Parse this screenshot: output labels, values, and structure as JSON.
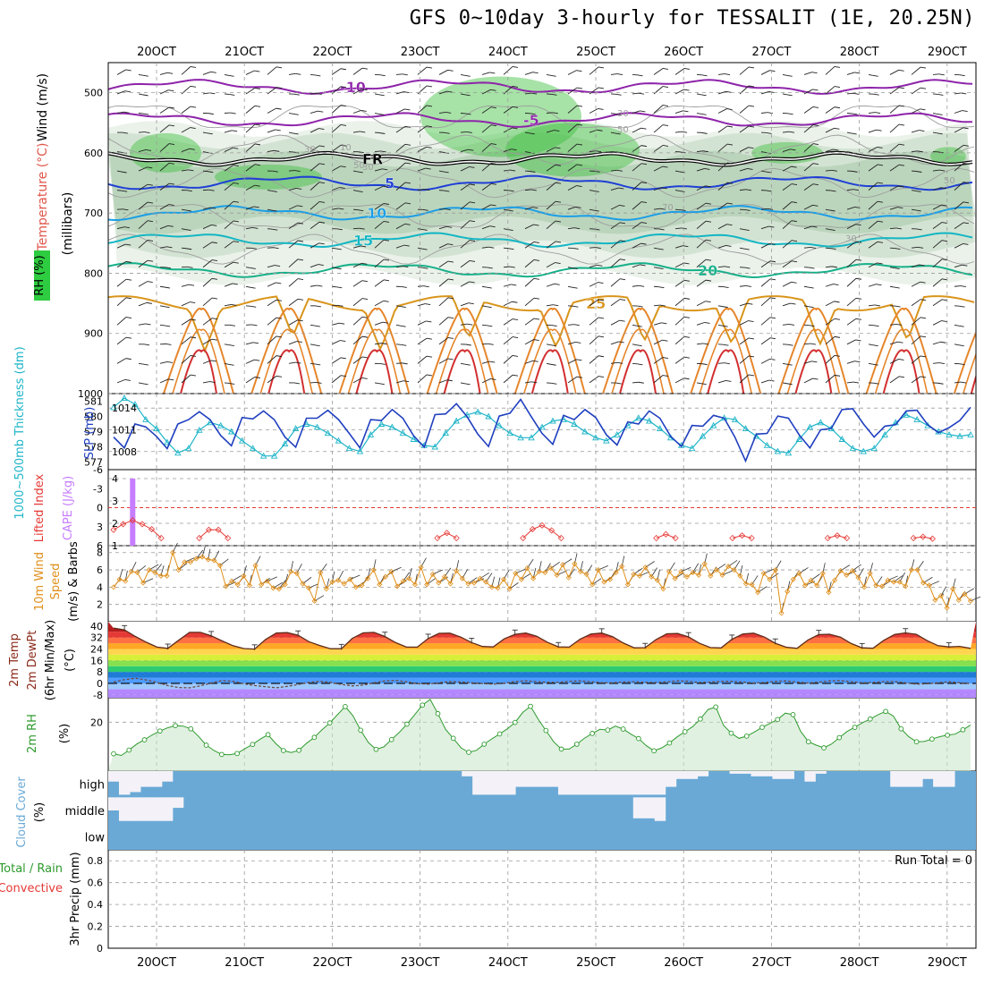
{
  "title": "GFS 0~10day 3-hourly for TESSALIT (1E, 20.25N)",
  "colors": {
    "temp_contour": "#7b1fa2",
    "freezing": "#000000",
    "rh_fill": "#2e7d32",
    "slp": "#1f3fbf",
    "thickness": "#1fb5c8",
    "cape": "#c77dff",
    "lifted_index": "#e53935",
    "wind": "#e08f1a",
    "rh2m": "#2e9a2e",
    "cloud": "#6aa9d6",
    "precip_total": "#2e9a2e",
    "precip_conv": "#e53935"
  },
  "chart_data": [
    {
      "panel": "upper-air",
      "type": "heatmap",
      "xlabels": [
        "20OCT",
        "21OCT",
        "22OCT",
        "23OCT",
        "24OCT",
        "25OCT",
        "26OCT",
        "27OCT",
        "28OCT",
        "29OCT"
      ],
      "ylabel_parts": [
        "RH (%)",
        "Temperature (°C)",
        "Wind (m/s)"
      ],
      "pressure_label": "(millibars)",
      "pressure_ticks": [
        500,
        600,
        700,
        800,
        900,
        1000
      ],
      "ylim": [
        450,
        1000
      ],
      "contours": [
        {
          "label": "-10",
          "level_mb": 490,
          "color": "#8e24aa"
        },
        {
          "label": "-5",
          "level_mb": 545,
          "color": "#8e24aa"
        },
        {
          "label": "FR",
          "level_mb": 610,
          "color": "#000000"
        },
        {
          "label": "5",
          "level_mb": 650,
          "color": "#1f3fd6"
        },
        {
          "label": "10",
          "level_mb": 700,
          "color": "#1a9ee6"
        },
        {
          "label": "15",
          "level_mb": 745,
          "color": "#13b6c4"
        },
        {
          "label": "20",
          "level_mb": 795,
          "color": "#16b089"
        },
        {
          "label": "25",
          "level_mb": 850,
          "color": "#d9951c"
        }
      ],
      "rh_labels": [
        "30",
        "50",
        "10",
        "30",
        "50",
        "70",
        "30",
        "50",
        "30"
      ]
    },
    {
      "panel": "slp-thickness",
      "type": "line",
      "ylabel": "SLP (mb)",
      "ylabel2": "1000~500mb Thickness (dm)",
      "slp_ticks": [
        1008,
        1011,
        1014
      ],
      "thickness_ticks": [
        577,
        578,
        579,
        580,
        581
      ],
      "slp_ylim": [
        1005.5,
        1016
      ],
      "thickness_ylim": [
        576.5,
        581.5
      ],
      "slp": [
        1010.0,
        1008.5,
        1011.8,
        1011.4,
        1010.1,
        1008.4,
        1011.8,
        1012.4,
        1013.5,
        1012.4,
        1010.2,
        1008.8,
        1012.7,
        1012.5,
        1013.6,
        1012.4,
        1010.0,
        1008.6,
        1012.6,
        1012.6,
        1013.7,
        1012.4,
        1010.5,
        1008.5,
        1012.4,
        1012.3,
        1013.8,
        1012.6,
        1010.2,
        1008.6,
        1013.1,
        1013.2,
        1014.6,
        1012.8,
        1010.4,
        1008.7,
        1012.9,
        1013.3,
        1015.2,
        1012.8,
        1010.5,
        1009.0,
        1013.0,
        1012.4,
        1013.8,
        1012.7,
        1010.3,
        1008.9,
        1012.1,
        1011.8,
        1013.6,
        1012.6,
        1010.1,
        1008.7,
        1011.6,
        1011.5,
        1013.0,
        1012.6,
        1010.0,
        1006.7,
        1010.4,
        1010.5,
        1012.9,
        1012.6,
        1010.3,
        1008.5,
        1011.0,
        1011.2,
        1013.8,
        1013.9,
        1011.8,
        1010.0,
        1011.5,
        1011.7,
        1013.6,
        1013.7,
        1011.7,
        1010.6,
        1011.3,
        1012.3,
        1014.1
      ],
      "thickness": [
        580.6,
        581.2,
        580.8,
        579.8,
        579.2,
        578.3,
        577.6,
        577.9,
        579.1,
        579.6,
        579.4,
        579.0,
        578.4,
        577.9,
        577.4,
        577.4,
        578.2,
        579.2,
        579.5,
        579.3,
        578.9,
        578.4,
        577.9,
        577.7,
        578.8,
        579.5,
        579.3,
        578.9,
        578.5,
        578.1,
        578.0,
        578.9,
        579.7,
        580.1,
        580.3,
        580.0,
        579.4,
        578.9,
        578.6,
        578.6,
        579.3,
        579.7,
        579.8,
        579.5,
        579.0,
        578.6,
        578.4,
        578.8,
        579.4,
        579.9,
        579.7,
        579.2,
        578.6,
        578.1,
        577.9,
        578.7,
        579.4,
        579.9,
        579.8,
        579.2,
        578.7,
        578.1,
        577.7,
        577.6,
        578.5,
        579.3,
        579.6,
        579.2,
        578.5,
        577.9,
        577.7,
        577.9,
        578.8,
        579.6,
        580.1,
        579.8,
        579.4,
        579.0,
        578.8,
        578.7,
        578.8
      ]
    },
    {
      "panel": "cape-li",
      "type": "bar",
      "ylabel": "CAPE (J/kg)",
      "ylabel2": "Lifted Index",
      "li_ticks": [
        "-6",
        "-3",
        "0",
        "3",
        "6"
      ],
      "cape_ticks": [
        "1",
        "2",
        "3",
        "4"
      ],
      "cape_ylim": [
        1,
        4.4
      ],
      "li_ylim": [
        -6,
        6
      ],
      "cape_bars": [
        {
          "x_index": 2,
          "value": 4
        }
      ],
      "lifted_index": [
        3.5,
        2.6,
        2.0,
        2.6,
        3.4,
        4.8,
        null,
        null,
        null,
        4.8,
        3.5,
        3.5,
        4.8,
        null,
        null,
        null,
        null,
        null,
        null,
        null,
        null,
        null,
        null,
        null,
        null,
        null,
        null,
        null,
        null,
        null,
        null,
        null,
        null,
        null,
        4.8,
        4.0,
        4.8,
        null,
        null,
        null,
        null,
        null,
        null,
        4.8,
        3.4,
        2.8,
        3.6,
        4.8,
        null,
        null,
        null,
        null,
        null,
        null,
        null,
        null,
        null,
        4.8,
        4.2,
        4.8,
        null,
        null,
        null,
        null,
        null,
        4.8,
        4.4,
        4.8,
        null,
        null,
        null,
        null,
        null,
        null,
        null,
        4.8,
        4.4,
        4.8,
        null,
        null,
        null,
        null,
        null,
        null,
        4.8,
        4.6,
        4.9,
        null,
        null,
        null,
        null
      ]
    },
    {
      "panel": "wind10m",
      "type": "line",
      "ylabel": "10m Wind Speed (m/s) & Barbs",
      "ylabel_parts": [
        "10m Wind",
        "Speed",
        "(m/s) & Barbs"
      ],
      "ticks": [
        "2",
        "4",
        "6",
        "8"
      ],
      "ylim": [
        0,
        8.8
      ],
      "speed": [
        4.0,
        4.9,
        4.7,
        5.8,
        5.7,
        4.5,
        6.0,
        5.7,
        5.3,
        5.3,
        8.0,
        6.0,
        6.9,
        6.9,
        7.3,
        7.5,
        7.2,
        7.1,
        6.5,
        4.1,
        4.7,
        4.3,
        5.3,
        4.2,
        6.5,
        4.3,
        4.7,
        3.9,
        3.8,
        4.3,
        5.8,
        5.6,
        4.4,
        3.9,
        2.4,
        5.7,
        3.8,
        4.6,
        4.8,
        4.4,
        4.9,
        4.0,
        4.2,
        5.0,
        6.0,
        4.3,
        5.2,
        5.8,
        4.1,
        4.7,
        5.0,
        4.3,
        6.3,
        4.3,
        5.5,
        4.5,
        5.2,
        4.4,
        5.9,
        5.0,
        4.4,
        4.5,
        5.0,
        4.6,
        4.0,
        3.9,
        4.9,
        3.8,
        5.6,
        4.9,
        6.2,
        5.0,
        5.8,
        5.7,
        6.2,
        5.4,
        6.6,
        5.1,
        6.7,
        5.8,
        5.5,
        4.3,
        6.0,
        4.6,
        4.9,
        5.7,
        6.4,
        4.3,
        5.5,
        5.3,
        6.3,
        5.2,
        4.8,
        3.8,
        5.8,
        5.0,
        5.8,
        5.2,
        5.7,
        5.4,
        6.7,
        5.3,
        6.0,
        5.4,
        6.4,
        6.0,
        5.3,
        4.4,
        4.3,
        3.4,
        5.6,
        4.9,
        6.0,
        1.0,
        3.5,
        4.9,
        5.6,
        4.2,
        4.8,
        4.2,
        5.6,
        3.4,
        4.8,
        5.9,
        5.4,
        5.9,
        5.1,
        4.0,
        5.6,
        4.2,
        4.1,
        4.8,
        4.6,
        4.6,
        4.1,
        6.0,
        6.0,
        4.5,
        4.2,
        2.5,
        3.0,
        1.6,
        3.8,
        2.5,
        3.2,
        2.4
      ]
    },
    {
      "panel": "temp2m",
      "type": "area",
      "ylabel_parts": [
        "2m Temp",
        "2m DewPt",
        "(6hr Min/Max)",
        "(°C)"
      ],
      "ticks": [
        "-8",
        "0",
        "8",
        "16",
        "24",
        "32",
        "40"
      ],
      "ylim": [
        -10,
        43
      ],
      "temp": [
        38.5,
        37.3,
        32.7,
        28.7,
        25.3,
        24.4,
        30.1,
        35.6,
        35.6,
        33.2,
        29.6,
        26.3,
        24.3,
        23.9,
        30.6,
        35.1,
        35.4,
        33.6,
        29.1,
        26.4,
        24.2,
        24.2,
        31.4,
        35.2,
        35.6,
        32.7,
        28.4,
        25.3,
        25.3,
        31.3,
        34.9,
        35.0,
        32.3,
        28.5,
        25.7,
        25.4,
        31.0,
        34.2,
        35.1,
        32.9,
        28.6,
        25.5,
        25.3,
        30.8,
        34.4,
        35.1,
        32.6,
        28.1,
        24.8,
        24.9,
        30.5,
        34.6,
        34.8,
        32.4,
        28.0,
        25.0,
        24.7,
        30.7,
        34.4,
        35.0,
        32.3,
        28.0,
        25.2,
        24.4,
        30.2,
        34.0,
        34.3,
        32.3,
        27.8,
        24.8,
        24.5,
        30.0,
        34.1,
        35.2,
        34.2,
        29.8,
        26.3,
        25.4,
        25.8,
        24.4
      ],
      "dewpt": [
        1.0,
        2.6,
        3.6,
        2.4,
        0.7,
        -1.5,
        -2.9,
        -3.1,
        -1.7,
        0.3,
        2.0,
        1.5,
        -0.2,
        -1.5,
        -2.3,
        -3.1,
        -2.1,
        -0.8,
        0.7,
        1.5,
        0.7,
        -0.7,
        -1.8,
        -1.2,
        0.4,
        1.7,
        2.1,
        1.1,
        -0.2,
        -0.5,
        0.4,
        1.3,
        1.0,
        0.4,
        -0.1,
        -0.5,
        0.1,
        1.3,
        1.7,
        1.2,
        0.7,
        0.8,
        1.5,
        1.7,
        1.1,
        0.5,
        0.4,
        1.0,
        1.2,
        0.7,
        0.6,
        1.1,
        1.8,
        1.5,
        0.6,
        0.9,
        1.5,
        1.4,
        0.9,
        0.3,
        0.6,
        1.4,
        1.7,
        0.9,
        0.2,
        0.9,
        1.7,
        2.0,
        1.2,
        0.4,
        0.6,
        1.3,
        1.3,
        0.4,
        -0.5,
        -0.3,
        0.5,
        1.1,
        0.5,
        -0.2
      ]
    },
    {
      "panel": "rh2m",
      "type": "area",
      "ylabel": "2m RH",
      "unit": "(%)",
      "ticks": [
        "20"
      ],
      "ylim": [
        0,
        30
      ],
      "rh": [
        7.1,
        6.4,
        8.6,
        11.1,
        12.8,
        14.8,
        16.4,
        17.7,
        18.6,
        18.4,
        17.3,
        14.2,
        10.6,
        8.4,
        6.8,
        6.7,
        7.2,
        9.2,
        10.9,
        13.1,
        14.9,
        11.3,
        8.4,
        7.6,
        8.5,
        11.4,
        13.8,
        16.9,
        19.7,
        23.1,
        26.4,
        22.7,
        16.7,
        11.7,
        8.9,
        9.9,
        12.9,
        15.8,
        19.2,
        23.1,
        27.0,
        29.3,
        23.5,
        17.1,
        13.4,
        9.5,
        7.7,
        8.5,
        11.0,
        13.2,
        15.2,
        17.3,
        19.9,
        24.0,
        26.5,
        21.2,
        16.6,
        12.0,
        9.0,
        9.0,
        11.0,
        13.5,
        15.4,
        17.1,
        16.8,
        18.4,
        17.2,
        15.1,
        13.3,
        10.4,
        8.3,
        9.5,
        11.5,
        14.0,
        16.1,
        18.2,
        21.3,
        25.2,
        26.2,
        18.7,
        15.5,
        13.4,
        14.3,
        16.0,
        17.9,
        19.5,
        21.1,
        23.7,
        23.1,
        16.2,
        12.0,
        10.6,
        9.5,
        11.1,
        13.7,
        16.2,
        17.9,
        19.8,
        21.3,
        23.0,
        24.4,
        22.5,
        17.3,
        14.0,
        12.0,
        12.1,
        13.1,
        14.1,
        14.7,
        15.1,
        16.9,
        18.8
      ],
      "points_drawn": true
    },
    {
      "panel": "cloud",
      "type": "heatmap",
      "ylabel": "Cloud Cover",
      "unit": "(%)",
      "levels": [
        "high",
        "middle",
        "low"
      ],
      "high_cover": [
        0.4,
        0.9,
        0.8,
        0.6,
        0.6,
        0.4,
        0,
        0,
        0,
        0,
        0,
        0,
        0,
        0,
        0,
        0,
        0,
        0,
        0,
        0,
        0,
        0,
        0,
        0,
        0,
        0,
        0,
        0,
        0,
        0,
        0,
        0,
        0,
        0.2,
        0.9,
        0.9,
        0.9,
        0.9,
        0.6,
        0.6,
        0.6,
        0.6,
        0.9,
        0.9,
        0.9,
        0.9,
        0.9,
        0.9,
        0.9,
        0.9,
        0.9,
        0.9,
        0.6,
        0.3,
        0.3,
        0.2,
        0,
        0,
        0.1,
        0.1,
        0.2,
        0.2,
        0.3,
        0.3,
        0,
        0.4,
        0.1,
        0,
        0,
        0,
        0,
        0,
        0,
        0.6,
        0.6,
        0.6,
        0.3,
        0.6,
        0.6,
        0,
        0
      ],
      "middle_cover": [
        0.5,
        0.9,
        0.9,
        0.9,
        0.9,
        0.9,
        0.4,
        0,
        0,
        0,
        0,
        0,
        0,
        0,
        0,
        0,
        0,
        0,
        0,
        0,
        0,
        0,
        0,
        0,
        0,
        0,
        0,
        0,
        0,
        0,
        0,
        0,
        0,
        0,
        0,
        0,
        0,
        0,
        0,
        0,
        0,
        0,
        0,
        0,
        0,
        0,
        0,
        0,
        0,
        0.8,
        0.8,
        0.9,
        0,
        0,
        0,
        0,
        0,
        0,
        0,
        0,
        0,
        0,
        0,
        0,
        0,
        0,
        0,
        0,
        0,
        0,
        0,
        0,
        0,
        0,
        0,
        0,
        0,
        0,
        0,
        0,
        0
      ]
    },
    {
      "panel": "precip",
      "type": "bar",
      "ylabel": "3hr Precip (mm)",
      "series_labels": [
        "Total / Rain",
        "Convective"
      ],
      "run_total_label": "Run Total = 0",
      "ticks": [
        "0",
        "0.2",
        "0.4",
        "0.6",
        "0.8"
      ],
      "ylim": [
        0,
        0.9
      ],
      "total": [],
      "convective": []
    }
  ],
  "xaxis": {
    "top_labels": [
      "20OCT",
      "21OCT",
      "22OCT",
      "23OCT",
      "24OCT",
      "25OCT",
      "26OCT",
      "27OCT",
      "28OCT",
      "29OCT"
    ],
    "bottom_labels": [
      "20OCT",
      "21OCT",
      "22OCT",
      "23OCT",
      "24OCT",
      "25OCT",
      "26OCT",
      "27OCT",
      "28OCT",
      "29OCT"
    ]
  }
}
